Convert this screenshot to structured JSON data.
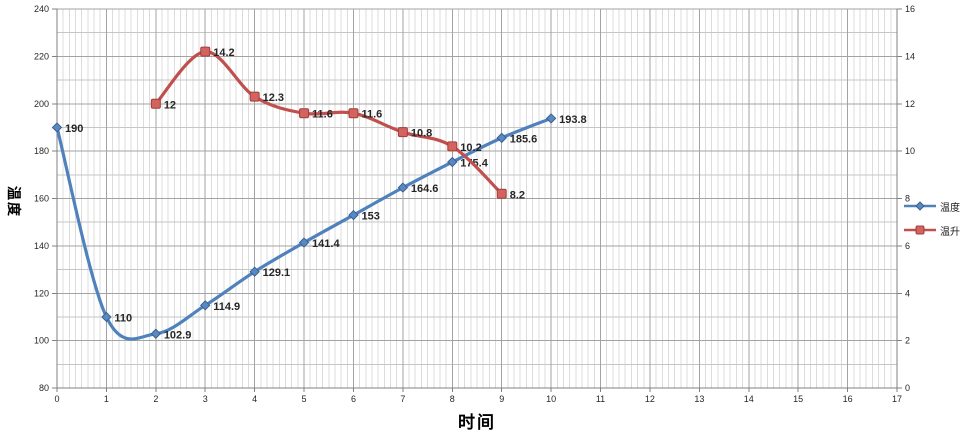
{
  "chart_data": {
    "type": "line",
    "title": "",
    "xlabel": "时间",
    "ylabel": "温度",
    "legend_position": "right",
    "grid": true,
    "x_axis": {
      "min": 0,
      "max": 17,
      "major_unit": 1,
      "minor_per_major": 8,
      "ticks": [
        0,
        1,
        2,
        3,
        4,
        5,
        6,
        7,
        8,
        9,
        10,
        11,
        12,
        13,
        14,
        15,
        16,
        17
      ]
    },
    "y_left_axis": {
      "min": 80,
      "max": 240,
      "major_unit": 20,
      "minor_unit": 10,
      "ticks": [
        80,
        100,
        120,
        140,
        160,
        180,
        200,
        220,
        240
      ]
    },
    "y_right_axis": {
      "min": 0,
      "max": 16,
      "major_unit": 2,
      "ticks": [
        0,
        2,
        4,
        6,
        8,
        10,
        12,
        14,
        16
      ]
    },
    "series": [
      {
        "name": "温度",
        "axis": "left",
        "color": "#4f81bd",
        "marker": "diamond",
        "marker_fill": "#5a88c2",
        "marker_border": "#39618f",
        "x": [
          0,
          1,
          2,
          3,
          4,
          5,
          6,
          7,
          8,
          9,
          10
        ],
        "values": [
          190,
          110,
          102.9,
          114.9,
          129.1,
          141.4,
          153,
          164.6,
          175.4,
          185.6,
          193.8
        ],
        "labels": [
          "190",
          "110",
          "102.9",
          "114.9",
          "129.1",
          "141.4",
          "153",
          "164.6",
          "175.4",
          "185.6",
          "193.8"
        ]
      },
      {
        "name": "温升",
        "axis": "right",
        "color": "#c0504d",
        "marker": "square",
        "marker_fill": "#d4625e",
        "marker_border": "#9d3f3d",
        "x": [
          2,
          3,
          4,
          5,
          6,
          7,
          8,
          9
        ],
        "values": [
          12,
          14.2,
          12.3,
          11.6,
          11.6,
          10.8,
          10.2,
          8.2
        ],
        "labels": [
          "12",
          "14.2",
          "12.3",
          "11.6",
          "11.6",
          "10.8",
          "10.2",
          "8.2"
        ]
      }
    ]
  }
}
